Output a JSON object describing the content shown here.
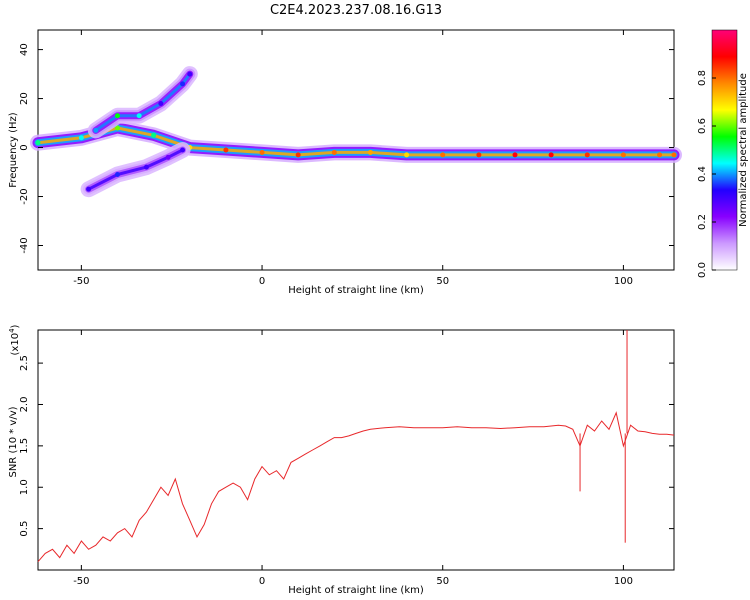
{
  "title": "C2E4.2023.237.08.16.G13",
  "colors": {
    "snr_line": "#e8282b",
    "axis": "#000000"
  },
  "chart_data": [
    {
      "type": "heatmap",
      "name": "spectrogram",
      "xlabel": "Height of straight line (km)",
      "ylabel": "Frequency (Hz)",
      "xlim": [
        -62,
        114
      ],
      "ylim": [
        -50,
        48
      ],
      "xticks": [
        -50,
        0,
        50,
        100
      ],
      "yticks": [
        -40,
        -20,
        0,
        20,
        40
      ],
      "colorbar": {
        "label": "Normalized spectral amplitude",
        "range": [
          0,
          1
        ],
        "ticks": [
          0.0,
          0.2,
          0.4,
          0.6,
          0.8
        ],
        "colormap": [
          "#ffffff",
          "#cc99ff",
          "#8800ff",
          "#2200ff",
          "#00ffff",
          "#00ff00",
          "#ffff00",
          "#ff8800",
          "#ff0000",
          "#ff0077"
        ]
      },
      "features": [
        {
          "label": "main trace",
          "x": [
            -62,
            -50,
            -40,
            -30,
            -20,
            -10,
            0,
            10,
            20,
            30,
            40,
            50,
            60,
            70,
            80,
            90,
            100,
            110,
            114
          ],
          "y": [
            2,
            4,
            8,
            5,
            0,
            -1,
            -2,
            -3,
            -2,
            -2,
            -3,
            -3,
            -3,
            -3,
            -3,
            -3,
            -3,
            -3,
            -3
          ],
          "amplitude": [
            0.5,
            0.45,
            0.6,
            0.5,
            0.7,
            0.85,
            0.8,
            0.85,
            0.8,
            0.75,
            0.7,
            0.8,
            0.85,
            0.9,
            0.9,
            0.85,
            0.8,
            0.8,
            0.8
          ]
        },
        {
          "label": "upper branch",
          "x": [
            -46,
            -40,
            -34,
            -28,
            -22,
            -20
          ],
          "y": [
            7,
            13,
            13,
            18,
            26,
            30
          ],
          "amplitude": [
            0.4,
            0.55,
            0.45,
            0.3,
            0.35,
            0.3
          ]
        },
        {
          "label": "lower branch",
          "x": [
            -48,
            -40,
            -32,
            -26,
            -22
          ],
          "y": [
            -17,
            -11,
            -8,
            -4,
            -1
          ],
          "amplitude": [
            0.3,
            0.35,
            0.3,
            0.25,
            0.3
          ]
        }
      ]
    },
    {
      "type": "line",
      "name": "snr",
      "xlabel": "Height of straight line (km)",
      "ylabel": "SNR (10 * v/v)",
      "yscale_label": "(x10",
      "yscale_exp": "4",
      "yscale_close": ")",
      "xlim": [
        -62,
        114
      ],
      "ylim": [
        0,
        2.9
      ],
      "xticks": [
        -50,
        0,
        50,
        100
      ],
      "yticks": [
        0.5,
        1.0,
        1.5,
        2.0,
        2.5
      ],
      "series": [
        {
          "x": [
            -62,
            -60,
            -58,
            -56,
            -54,
            -52,
            -50,
            -48,
            -46,
            -44,
            -42,
            -40,
            -38,
            -36,
            -34,
            -32,
            -30,
            -28,
            -26,
            -24,
            -22,
            -20,
            -18,
            -16,
            -14,
            -12,
            -10,
            -8,
            -6,
            -4,
            -2,
            0,
            2,
            4,
            6,
            8,
            10,
            12,
            14,
            16,
            18,
            20,
            22,
            24,
            26,
            28,
            30,
            34,
            38,
            42,
            46,
            50,
            54,
            58,
            62,
            66,
            70,
            74,
            78,
            82,
            84,
            86,
            88,
            90,
            92,
            94,
            96,
            98,
            100,
            102,
            104,
            106,
            108,
            110,
            112,
            114
          ],
          "y": [
            0.1,
            0.2,
            0.25,
            0.15,
            0.3,
            0.2,
            0.35,
            0.25,
            0.3,
            0.4,
            0.35,
            0.45,
            0.5,
            0.4,
            0.6,
            0.7,
            0.85,
            1.0,
            0.9,
            1.1,
            0.8,
            0.6,
            0.4,
            0.55,
            0.8,
            0.95,
            1.0,
            1.05,
            1.0,
            0.85,
            1.1,
            1.25,
            1.15,
            1.2,
            1.1,
            1.3,
            1.35,
            1.4,
            1.45,
            1.5,
            1.55,
            1.6,
            1.6,
            1.62,
            1.65,
            1.68,
            1.7,
            1.72,
            1.73,
            1.72,
            1.72,
            1.72,
            1.73,
            1.72,
            1.72,
            1.71,
            1.72,
            1.73,
            1.73,
            1.75,
            1.74,
            1.7,
            1.5,
            1.75,
            1.68,
            1.8,
            1.7,
            1.9,
            1.5,
            1.75,
            1.68,
            1.67,
            1.65,
            1.64,
            1.64,
            1.63
          ],
          "annotations": [
            {
              "label": "spike",
              "x": 101,
              "y": 2.9
            },
            {
              "label": "dip",
              "x": 100.5,
              "y": 0.33
            },
            {
              "label": "dip",
              "x": 88,
              "y": 0.95
            }
          ]
        }
      ]
    }
  ]
}
